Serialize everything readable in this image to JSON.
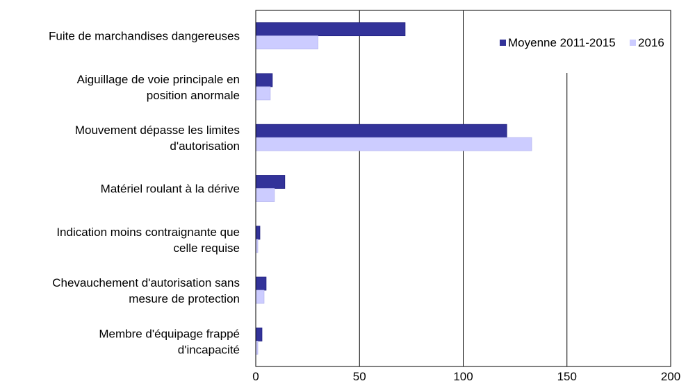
{
  "chart_data": {
    "type": "bar",
    "orientation": "horizontal",
    "categories": [
      [
        "Fuite de marchandises dangereuses"
      ],
      [
        "Aiguillage de voie principale en",
        "position anormale"
      ],
      [
        "Mouvement dépasse les limites",
        "d'autorisation"
      ],
      [
        "Matériel roulant à la dérive"
      ],
      [
        "Indication moins contraignante que",
        "celle requise"
      ],
      [
        "Chevauchement d'autorisation sans",
        "mesure de protection"
      ],
      [
        "Membre d'équipage frappé",
        "d'incapacité"
      ]
    ],
    "series": [
      {
        "name": "Moyenne 2011-2015",
        "color": "#333399",
        "values": [
          72,
          8,
          121,
          14,
          2,
          5,
          3
        ]
      },
      {
        "name": "2016",
        "color": "#ccccff",
        "values": [
          30,
          7,
          133,
          9,
          1,
          4,
          1
        ]
      }
    ],
    "xlim": [
      0,
      200
    ],
    "xticks": [
      "0",
      "50",
      "100",
      "150",
      "200"
    ],
    "grid": "vertical major gridlines",
    "legend": "top-right",
    "title": "",
    "xlabel": "",
    "ylabel": ""
  }
}
